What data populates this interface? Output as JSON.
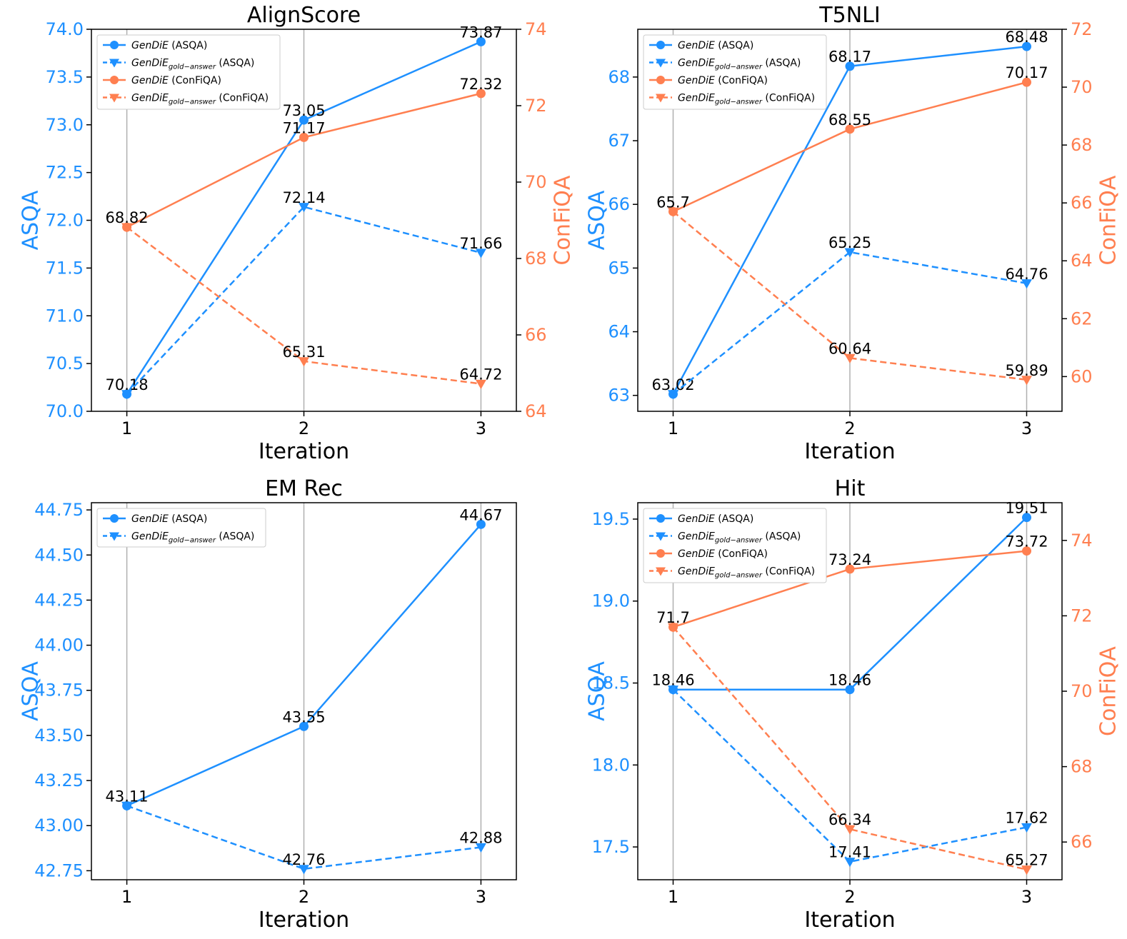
{
  "colors": {
    "asqa": "#1e90ff",
    "confiqa": "#ff7f50",
    "grid": "#b0b0b0",
    "text": "#000000"
  },
  "legend_labels": {
    "gendie": "GenDiE",
    "gendie_gold": "GenDiE",
    "gold_sub": "gold−answer",
    "asqa_suffix": " (ASQA)",
    "confiqa_suffix": " (ConFiQA)"
  },
  "chart_data": [
    {
      "type": "line",
      "title": "AlignScore",
      "xlabel": "Iteration",
      "ylabel": "ASQA",
      "y2label": "ConFiQA",
      "x": [
        1,
        2,
        3
      ],
      "ylim": [
        70.0,
        74.0
      ],
      "yticks": [
        70.0,
        70.5,
        71.0,
        71.5,
        72.0,
        72.5,
        73.0,
        73.5,
        74.0
      ],
      "yticklabels": [
        "70.0",
        "70.5",
        "71.0",
        "71.5",
        "72.0",
        "72.5",
        "73.0",
        "73.5",
        "74.0"
      ],
      "y2lim": [
        64.0,
        74.0
      ],
      "y2ticks": [
        64,
        66,
        68,
        70,
        72,
        74
      ],
      "y2ticklabels": [
        "64",
        "66",
        "68",
        "70",
        "72",
        "74"
      ],
      "legend_position": "top-left",
      "grid": "vertical",
      "series": [
        {
          "name": "GenDiE (ASQA)",
          "axis": "left",
          "style": "solid",
          "marker": "circle",
          "values": [
            70.18,
            73.05,
            73.87
          ],
          "labels": [
            "70.18",
            "73.05",
            "73.87"
          ]
        },
        {
          "name": "GenDiE_gold-answer (ASQA)",
          "axis": "left",
          "style": "dashed",
          "marker": "triangle",
          "values": [
            70.18,
            72.14,
            71.66
          ],
          "labels": [
            "",
            "72.14",
            "71.66"
          ]
        },
        {
          "name": "GenDiE (ConFiQA)",
          "axis": "right",
          "style": "solid",
          "marker": "circle",
          "values": [
            68.82,
            71.17,
            72.32
          ],
          "labels": [
            "68.82",
            "71.17",
            "72.32"
          ]
        },
        {
          "name": "GenDiE_gold-answer (ConFiQA)",
          "axis": "right",
          "style": "dashed",
          "marker": "triangle",
          "values": [
            68.82,
            65.31,
            64.72
          ],
          "labels": [
            "",
            "65.31",
            "64.72"
          ]
        }
      ]
    },
    {
      "type": "line",
      "title": "T5NLI",
      "xlabel": "Iteration",
      "ylabel": "ASQA",
      "y2label": "ConFiQA",
      "x": [
        1,
        2,
        3
      ],
      "ylim": [
        62.75,
        68.75
      ],
      "yticks": [
        63,
        64,
        65,
        66,
        67,
        68
      ],
      "yticklabels": [
        "63",
        "64",
        "65",
        "66",
        "67",
        "68"
      ],
      "y2lim": [
        58.8,
        72.0
      ],
      "y2ticks": [
        60,
        62,
        64,
        66,
        68,
        70,
        72
      ],
      "y2ticklabels": [
        "60",
        "62",
        "64",
        "66",
        "68",
        "70",
        "72"
      ],
      "legend_position": "top-left",
      "grid": "vertical",
      "series": [
        {
          "name": "GenDiE (ASQA)",
          "axis": "left",
          "style": "solid",
          "marker": "circle",
          "values": [
            63.02,
            68.17,
            68.48
          ],
          "labels": [
            "63.02",
            "68.17",
            "68.48"
          ]
        },
        {
          "name": "GenDiE_gold-answer (ASQA)",
          "axis": "left",
          "style": "dashed",
          "marker": "triangle",
          "values": [
            63.02,
            65.25,
            64.76
          ],
          "labels": [
            "",
            "65.25",
            "64.76"
          ]
        },
        {
          "name": "GenDiE (ConFiQA)",
          "axis": "right",
          "style": "solid",
          "marker": "circle",
          "values": [
            65.7,
            68.55,
            70.17
          ],
          "labels": [
            "65.7",
            "68.55",
            "70.17"
          ]
        },
        {
          "name": "GenDiE_gold-answer (ConFiQA)",
          "axis": "right",
          "style": "dashed",
          "marker": "triangle",
          "values": [
            65.7,
            60.64,
            59.89
          ],
          "labels": [
            "",
            "60.64",
            "59.89"
          ]
        }
      ]
    },
    {
      "type": "line",
      "title": "EM Rec",
      "xlabel": "Iteration",
      "ylabel": "ASQA",
      "y2label": "",
      "x": [
        1,
        2,
        3
      ],
      "ylim": [
        42.7,
        44.79
      ],
      "yticks": [
        42.75,
        43.0,
        43.25,
        43.5,
        43.75,
        44.0,
        44.25,
        44.5,
        44.75
      ],
      "yticklabels": [
        "42.75",
        "43.00",
        "43.25",
        "43.50",
        "43.75",
        "44.00",
        "44.25",
        "44.50",
        "44.75"
      ],
      "legend_position": "top-left",
      "grid": "vertical",
      "series": [
        {
          "name": "GenDiE (ASQA)",
          "axis": "left",
          "style": "solid",
          "marker": "circle",
          "values": [
            43.11,
            43.55,
            44.67
          ],
          "labels": [
            "43.11",
            "43.55",
            "44.67"
          ]
        },
        {
          "name": "GenDiE_gold-answer (ASQA)",
          "axis": "left",
          "style": "dashed",
          "marker": "triangle",
          "values": [
            43.11,
            42.76,
            42.88
          ],
          "labels": [
            "",
            "42.76",
            "42.88"
          ]
        }
      ]
    },
    {
      "type": "line",
      "title": "Hit",
      "xlabel": "Iteration",
      "ylabel": "ASQA",
      "y2label": "ConFiQA",
      "x": [
        1,
        2,
        3
      ],
      "ylim": [
        17.3,
        19.6
      ],
      "yticks": [
        17.5,
        18.0,
        18.5,
        19.0,
        19.5
      ],
      "yticklabels": [
        "17.5",
        "18.0",
        "18.5",
        "19.0",
        "19.5"
      ],
      "y2lim": [
        65.0,
        75.0
      ],
      "y2ticks": [
        66,
        68,
        70,
        72,
        74
      ],
      "y2ticklabels": [
        "66",
        "68",
        "70",
        "72",
        "74"
      ],
      "legend_position": "top-left",
      "grid": "vertical",
      "series": [
        {
          "name": "GenDiE (ASQA)",
          "axis": "left",
          "style": "solid",
          "marker": "circle",
          "values": [
            18.46,
            18.46,
            19.51
          ],
          "labels": [
            "18.46",
            "18.46",
            "19.51"
          ]
        },
        {
          "name": "GenDiE_gold-answer (ASQA)",
          "axis": "left",
          "style": "dashed",
          "marker": "triangle",
          "values": [
            18.46,
            17.41,
            17.62
          ],
          "labels": [
            "",
            "17.41",
            "17.62"
          ]
        },
        {
          "name": "GenDiE (ConFiQA)",
          "axis": "right",
          "style": "solid",
          "marker": "circle",
          "values": [
            71.7,
            73.24,
            73.72
          ],
          "labels": [
            "71.7",
            "73.24",
            "73.72"
          ]
        },
        {
          "name": "GenDiE_gold-answer (ConFiQA)",
          "axis": "right",
          "style": "dashed",
          "marker": "triangle",
          "values": [
            71.7,
            66.34,
            65.27
          ],
          "labels": [
            "",
            "66.34",
            "65.27"
          ]
        }
      ]
    }
  ]
}
